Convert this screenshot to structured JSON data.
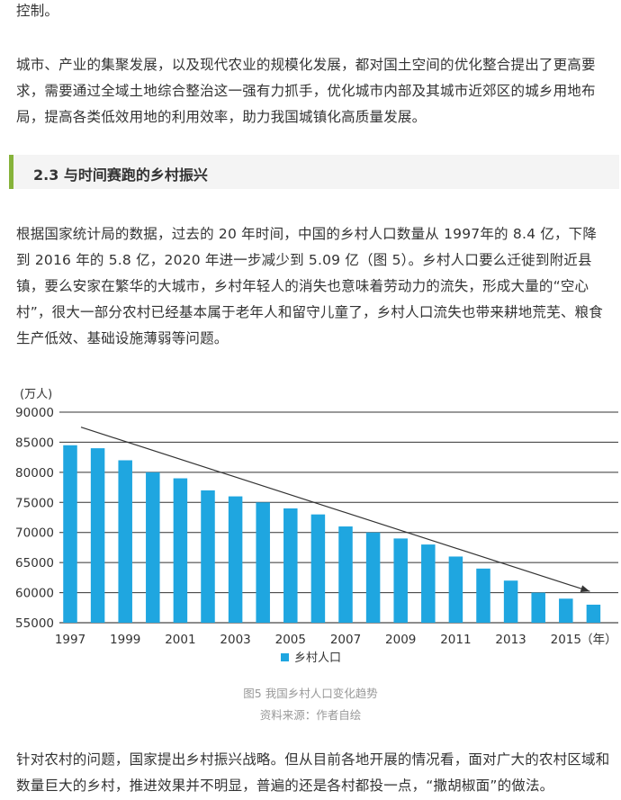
{
  "intro_fragment": "控制。",
  "para1": "城市、产业的集聚发展，以及现代农业的规模化发展，都对国土空间的优化整合提出了更高要求，需要通过全域土地综合整治这一强有力抓手，优化城市内部及其城市近郊区的城乡用地布局，提高各类低效用地的利用效率，助力我国城镇化高质量发展。",
  "section": {
    "number": "2.3",
    "title": "与时间赛跑的乡村振兴",
    "accent_color": "#86b33a"
  },
  "para2": "根据国家统计局的数据，过去的 20 年时间，中国的乡村人口数量从 1997年的 8.4 亿，下降到 2016 年的 5.8 亿，2020 年进一步减少到 5.09 亿（图 5）。乡村人口要么迁徙到附近县镇，要么安家在繁华的大城市，乡村年轻人的消失也意味着劳动力的流失，形成大量的“空心村”，很大一部分农村已经基本属于老年人和留守儿童了，乡村人口流失也带来耕地荒芜、粮食生产低效、基础设施薄弱等问题。",
  "chart_data": {
    "type": "bar",
    "ylabel": "(万人)",
    "xlabel": "（年）",
    "ylim": [
      55000,
      90000
    ],
    "yticks": [
      55000,
      60000,
      65000,
      70000,
      75000,
      80000,
      85000,
      90000
    ],
    "categories": [
      "1997",
      "1998",
      "1999",
      "2000",
      "2001",
      "2002",
      "2003",
      "2004",
      "2005",
      "2006",
      "2007",
      "2008",
      "2009",
      "2010",
      "2011",
      "2012",
      "2013",
      "2014",
      "2015",
      "2016"
    ],
    "x_tick_labels": [
      "1997",
      "1999",
      "2001",
      "2003",
      "2005",
      "2007",
      "2009",
      "2011",
      "2013",
      "2015"
    ],
    "series": [
      {
        "name": "乡村人口",
        "values": [
          84500,
          84000,
          82000,
          80000,
          79000,
          77000,
          76000,
          75000,
          74000,
          73000,
          71000,
          70000,
          69000,
          68000,
          66000,
          64000,
          62000,
          60000,
          59000,
          58000
        ]
      }
    ],
    "trend_arrow": {
      "from": [
        "1997",
        87500
      ],
      "to": [
        "2016",
        60200
      ]
    },
    "bar_color": "#1fa6e0",
    "grid": "horizontal",
    "legend_position": "bottom-center"
  },
  "caption": {
    "title": "图5 我国乡村人口变化趋势",
    "source": "资料来源：作者自绘"
  },
  "para3": "针对农村的问题，国家提出乡村振兴战略。但从目前各地开展的情况看，面对广大的农村区域和数量巨大的乡村，推进效果并不明显，普遍的还是各村都投一点，“撒胡椒面”的做法。"
}
